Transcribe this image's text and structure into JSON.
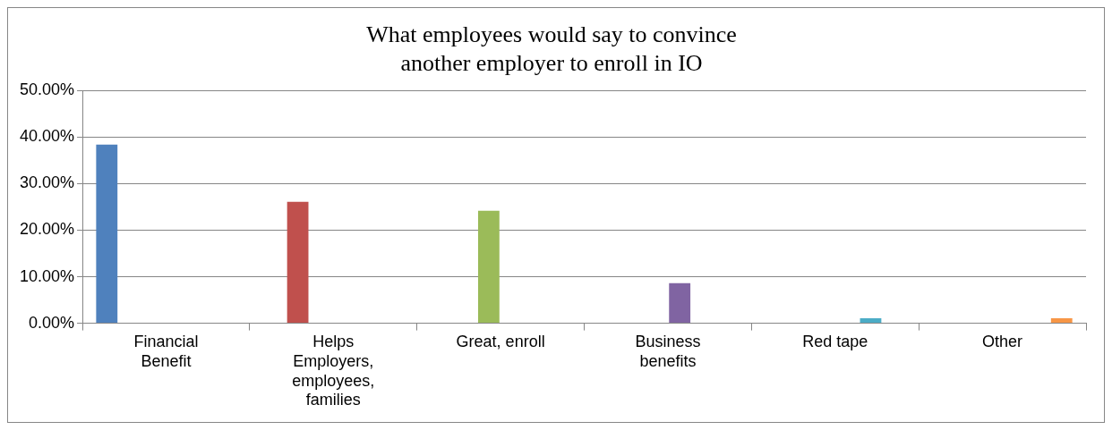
{
  "chart_data": {
    "type": "bar",
    "title": "What employees would say to convince\nanother employer to enroll in IO",
    "categories": [
      "Financial Benefit",
      "Helps Employers, employees, families",
      "Great, enroll",
      "Business benefits",
      "Red tape",
      "Other"
    ],
    "series": [
      {
        "color": "#4f81bd",
        "values": [
          38.4,
          null,
          null,
          null,
          null,
          null
        ]
      },
      {
        "color": "#c0504d",
        "values": [
          null,
          26.1,
          null,
          null,
          null,
          null
        ]
      },
      {
        "color": "#9bbb59",
        "values": [
          null,
          null,
          24.2,
          null,
          null,
          null
        ]
      },
      {
        "color": "#8064a2",
        "values": [
          null,
          null,
          null,
          8.6,
          null,
          null
        ]
      },
      {
        "color": "#4bacc6",
        "values": [
          null,
          null,
          null,
          null,
          1.1,
          null
        ]
      },
      {
        "color": "#f79646",
        "values": [
          null,
          null,
          null,
          null,
          null,
          1.1
        ]
      }
    ],
    "ylim": [
      0,
      50
    ],
    "yticks": [
      {
        "value": 0,
        "label": "0.00%"
      },
      {
        "value": 10,
        "label": "10.00%"
      },
      {
        "value": 20,
        "label": "20.00%"
      },
      {
        "value": 30,
        "label": "30.00%"
      },
      {
        "value": 40,
        "label": "40.00%"
      },
      {
        "value": 50,
        "label": "50.00%"
      }
    ],
    "grid": "y",
    "legend": false
  }
}
